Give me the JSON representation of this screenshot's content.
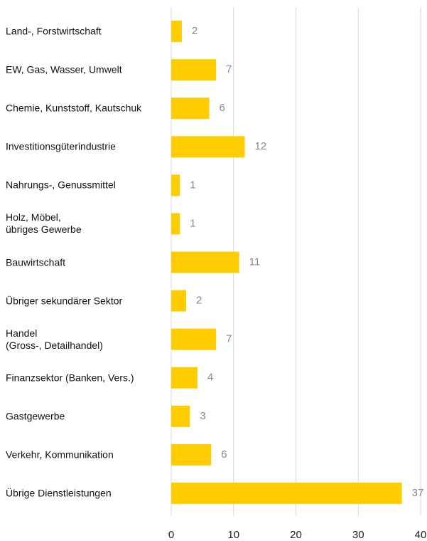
{
  "chart_data": {
    "type": "bar",
    "orientation": "horizontal",
    "categories": [
      "Land-, Forstwirtschaft",
      "EW, Gas, Wasser, Umwelt",
      "Chemie, Kunststoff, Kautschuk",
      "Investitionsgüterindustrie",
      "Nahrungs-, Genussmittel",
      "Holz, Möbel,\nübriges Gewerbe",
      "Bauwirtschaft",
      "Übriger sekundärer Sektor",
      "Handel\n(Gross-, Detailhandel)",
      "Finanzsektor (Banken, Vers.)",
      "Gastgewerbe",
      "Verkehr, Kommunikation",
      "Übrige Dienstleistungen"
    ],
    "values": [
      1.7,
      7.2,
      6.1,
      11.8,
      1.4,
      1.4,
      10.9,
      2.4,
      7.2,
      4.2,
      3.0,
      6.4,
      37.0
    ],
    "value_labels": [
      "2",
      "7",
      "6",
      "12",
      "1",
      "1",
      "11",
      "2",
      "7",
      "4",
      "3",
      "6",
      "37"
    ],
    "color": "#ffcc00",
    "xlim": [
      0,
      40
    ],
    "xticks": [
      0,
      10,
      20,
      30,
      40
    ],
    "grid": true
  }
}
